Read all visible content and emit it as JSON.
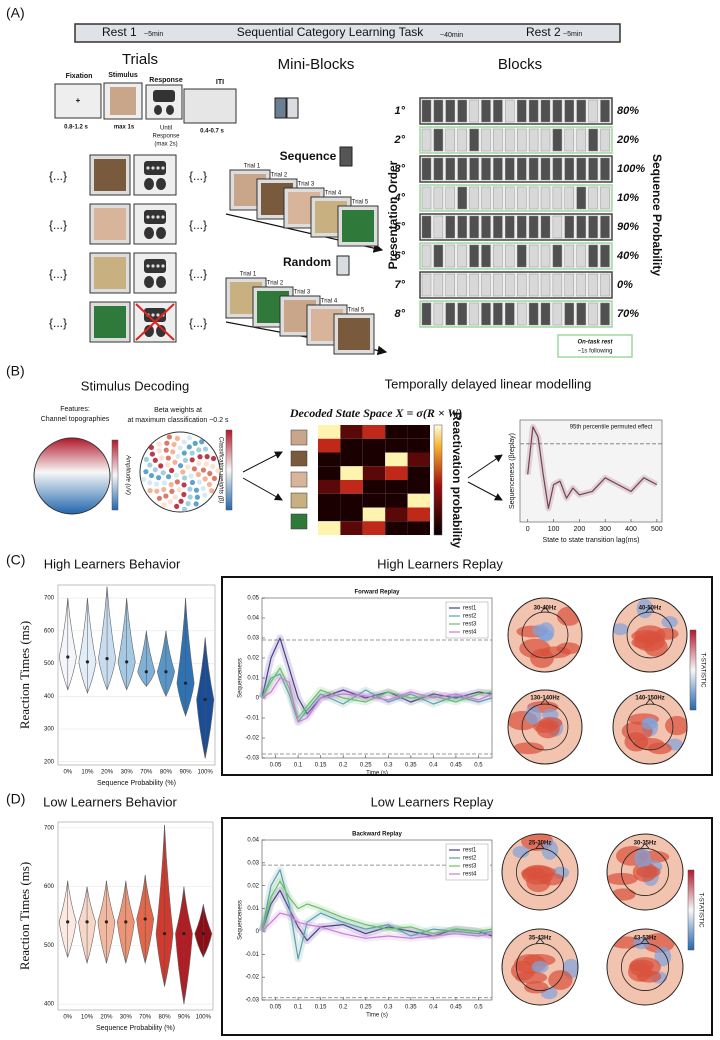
{
  "panel_labels": [
    "(A)",
    "(B)",
    "(C)",
    "(D)"
  ],
  "timeline": [
    {
      "label": "Rest 1",
      "duration": "~5min"
    },
    {
      "label": "Sequential Category Learning Task",
      "duration": "~40min"
    },
    {
      "label": "Rest 2",
      "duration": "~5min"
    }
  ],
  "trials": {
    "title": "Trials",
    "fixation": "Fixation",
    "fixation_time": "0.8-1.2 s",
    "stimulus": "Stimulus",
    "stimulus_time": "max 1s",
    "response": "Response",
    "response_time": [
      "Until",
      "Response",
      "(max 2s)"
    ],
    "iti": "ITI",
    "iti_time": "0.4-0.7 s",
    "ellipsis": "{...}"
  },
  "mini_blocks": {
    "title": "Mini-Blocks",
    "sequence": "Sequence",
    "random": "Random",
    "sequence_trials": [
      "Trial 1",
      "Trial 2",
      "Trial 3",
      "Trial 4",
      "Trial 5"
    ],
    "random_trials": [
      "Trial 1",
      "Trial 2",
      "Trial 3",
      "Trial 4",
      "Trial 5"
    ]
  },
  "blocks": {
    "title": "Blocks",
    "order_label": "Presentation Order",
    "probability_label": "Sequence Probability",
    "rows": [
      [
        "1°",
        "80%"
      ],
      [
        "2°",
        "20%"
      ],
      [
        "3°",
        "100%"
      ],
      [
        "4°",
        "10%"
      ],
      [
        "5°",
        "90%"
      ],
      [
        "6°",
        "40%"
      ],
      [
        "7°",
        "0%"
      ],
      [
        "8°",
        "70%"
      ]
    ],
    "legend": [
      "On-task rest",
      "~1s following"
    ]
  },
  "decoding": {
    "title": "Stimulus Decoding",
    "features": [
      "Features:",
      "Channel topographies"
    ],
    "beta": [
      "Beta weights at",
      "at maximum classification ~0.2 s"
    ],
    "amplitude": "Amplitude (uV)",
    "weights": "Classification weights (β)"
  },
  "tdlm": {
    "title": "Temporally delayed linear modelling",
    "equation": "Decoded State Space X = σ(R × W)",
    "colorbar": "Reactivation probability"
  },
  "replay_titles": [
    "High Learners Replay",
    "Low Learners Replay"
  ],
  "topomaps": [
    {
      "labels": [
        "30-40Hz",
        "40-50Hz",
        "130-140Hz",
        "140-150Hz"
      ],
      "colorbar": "T-STATISTIC"
    },
    {
      "labels": [
        "25-30Hz",
        "30-35Hz",
        "35-43Hz",
        "43-53Hz"
      ],
      "colorbar": "T-STATISTIC"
    }
  ],
  "chart_data": [
    {
      "type": "line",
      "x_label": "State to state transition lag(ms)",
      "y_label": "Sequenceness (βreplay)",
      "threshold_label": "95th percentile permuted effect",
      "x": [
        0,
        20,
        40,
        60,
        80,
        100,
        125,
        150,
        175,
        200,
        250,
        300,
        350,
        400,
        450,
        500
      ],
      "values": [
        0.2,
        0.9,
        0.75,
        0.2,
        -0.3,
        0.05,
        0.1,
        -0.15,
        0.0,
        -0.1,
        -0.05,
        0.15,
        0.05,
        -0.05,
        0.15,
        0.05
      ],
      "color": "#7b3b50",
      "xlim": [
        -30,
        520
      ],
      "xticks": [
        0,
        100,
        200,
        300,
        400,
        500
      ],
      "ylim": [
        -0.5,
        1.0
      ],
      "thresholds": [
        0.65
      ]
    },
    {
      "type": "violin",
      "title": "High Learners Behavior",
      "x_label": "Sequence Probability (%)",
      "y_label": "Reaction Times (ms)",
      "categories": [
        "0%",
        "10%",
        "20%",
        "30%",
        "70%",
        "80%",
        "90%",
        "100%"
      ],
      "values": [
        520,
        505,
        515,
        505,
        475,
        475,
        440,
        390
      ],
      "low": [
        420,
        410,
        420,
        420,
        430,
        400,
        340,
        210
      ],
      "high": [
        700,
        700,
        735,
        700,
        600,
        600,
        700,
        580
      ],
      "colors": [
        "#f4f6fb",
        "#e3edf7",
        "#c8dcef",
        "#a5c8e3",
        "#7fb0d6",
        "#5896c7",
        "#2f72b3",
        "#1a4d95"
      ],
      "ylim": [
        190,
        740
      ],
      "yticks": [
        200,
        300,
        400,
        500,
        600,
        700
      ]
    },
    {
      "type": "line",
      "title": "Forward Replay",
      "x_label": "Time (s)",
      "y_label": "Sequenceness",
      "x": [
        0.02,
        0.04,
        0.06,
        0.08,
        0.1,
        0.12,
        0.15,
        0.2,
        0.25,
        0.3,
        0.35,
        0.4,
        0.45,
        0.5,
        0.53
      ],
      "series": [
        {
          "name": "rest1",
          "color": "#4b3a8c",
          "values": [
            0,
            0.02,
            0.03,
            0.015,
            0,
            -0.008,
            0,
            0.004,
            0,
            0.003,
            -0.002,
            0.002,
            0,
            0.003,
            0.002
          ]
        },
        {
          "name": "rest2",
          "color": "#5aa0a8",
          "values": [
            0,
            0.01,
            0.012,
            0.002,
            -0.012,
            -0.006,
            0.002,
            -0.003,
            0.004,
            -0.002,
            0.002,
            -0.003,
            0.001,
            -0.002,
            0
          ]
        },
        {
          "name": "rest3",
          "color": "#6abf69",
          "values": [
            0,
            0.008,
            0.015,
            0.005,
            -0.01,
            -0.004,
            0.004,
            0,
            -0.002,
            0.003,
            0,
            0.001,
            -0.002,
            0.002,
            0.003
          ]
        },
        {
          "name": "rest4",
          "color": "#c77dd6",
          "values": [
            0,
            0.003,
            0.01,
            0.008,
            -0.012,
            -0.01,
            0,
            0.002,
            0.001,
            -0.001,
            0.003,
            0,
            0.002,
            -0.001,
            0.002
          ]
        }
      ],
      "xlim": [
        0.02,
        0.53
      ],
      "xticks": [
        0.05,
        0.1,
        0.15,
        0.2,
        0.25,
        0.3,
        0.35,
        0.4,
        0.45,
        0.5
      ],
      "ylim": [
        -0.03,
        0.05
      ],
      "yticks": [
        -0.03,
        -0.02,
        -0.01,
        0,
        0.01,
        0.02,
        0.03,
        0.04,
        0.05
      ],
      "thresholds": [
        0.029,
        -0.028
      ],
      "legend": "upper right"
    },
    {
      "type": "violin",
      "title": "Low Learners Behavior",
      "x_label": "Sequence Probability (%)",
      "y_label": "Reaction Times (ms)",
      "categories": [
        "0%",
        "10%",
        "20%",
        "30%",
        "70%",
        "80%",
        "90%",
        "100%"
      ],
      "values": [
        540,
        540,
        540,
        540,
        545,
        520,
        520,
        520
      ],
      "low": [
        480,
        470,
        470,
        470,
        470,
        430,
        400,
        480
      ],
      "high": [
        610,
        600,
        610,
        610,
        620,
        705,
        600,
        570
      ],
      "colors": [
        "#fbe9e2",
        "#f7d7c8",
        "#f2b9a0",
        "#ec9473",
        "#e2664a",
        "#cf3a2f",
        "#b21c22",
        "#8c0d16"
      ],
      "ylim": [
        390,
        710
      ],
      "yticks": [
        400,
        500,
        600,
        700
      ]
    },
    {
      "type": "line",
      "title": "Backward Replay",
      "x_label": "Time (s)",
      "y_label": "Sequenceness",
      "x": [
        0.02,
        0.04,
        0.06,
        0.08,
        0.1,
        0.12,
        0.15,
        0.2,
        0.25,
        0.3,
        0.35,
        0.4,
        0.45,
        0.5,
        0.53
      ],
      "series": [
        {
          "name": "rest1",
          "color": "#4b3a8c",
          "values": [
            0,
            0.012,
            0.018,
            0.01,
            0.002,
            -0.004,
            0.002,
            0.003,
            -0.001,
            0.002,
            0,
            -0.002,
            0.001,
            0,
            -0.002
          ]
        },
        {
          "name": "rest2",
          "color": "#5aa0a8",
          "values": [
            0,
            0.02,
            0.027,
            0.012,
            -0.012,
            0.004,
            0.008,
            0.004,
            0.001,
            0.003,
            -0.002,
            0.001,
            0,
            -0.001,
            0
          ]
        },
        {
          "name": "rest3",
          "color": "#6abf69",
          "values": [
            0,
            0.015,
            0.022,
            0.015,
            0.01,
            0.012,
            0.01,
            0.006,
            0.003,
            0.001,
            0.002,
            -0.001,
            0.001,
            0,
            0.001
          ]
        },
        {
          "name": "rest4",
          "color": "#c77dd6",
          "values": [
            0,
            0.004,
            0.008,
            0.007,
            0.004,
            0.003,
            0.002,
            -0.001,
            -0.003,
            -0.002,
            -0.003,
            -0.002,
            -0.001,
            -0.002,
            -0.001
          ]
        }
      ],
      "xlim": [
        0.02,
        0.53
      ],
      "xticks": [
        0.05,
        0.1,
        0.15,
        0.2,
        0.25,
        0.3,
        0.35,
        0.4,
        0.45,
        0.5
      ],
      "ylim": [
        -0.03,
        0.04
      ],
      "yticks": [
        -0.03,
        -0.02,
        -0.01,
        0,
        0.01,
        0.02,
        0.03,
        0.04
      ],
      "thresholds": [
        0.029,
        -0.029
      ],
      "legend": "upper right"
    }
  ]
}
